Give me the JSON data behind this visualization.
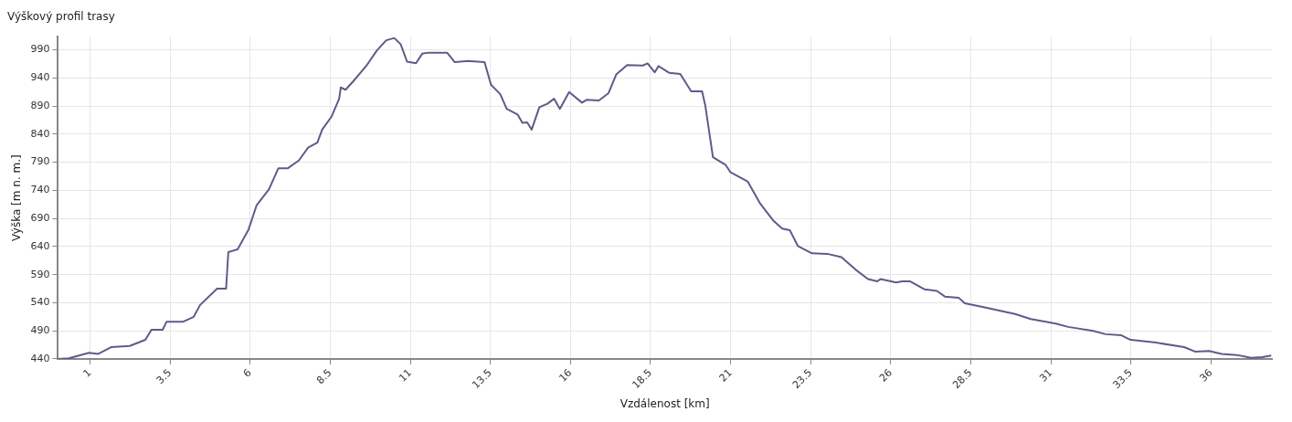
{
  "chart_data": {
    "type": "line",
    "title": "Výškový profil trasy",
    "xlabel": "Vzdálenost [km]",
    "ylabel": "Výška [m n. m.]",
    "xlim": [
      0,
      37.9
    ],
    "xticks": [
      1,
      3.5,
      6,
      8.5,
      11,
      13.5,
      16,
      18.5,
      21,
      23.5,
      26,
      28.5,
      31,
      33.5,
      36
    ],
    "ylim": [
      440,
      1013
    ],
    "yticks": [
      440,
      490,
      540,
      590,
      640,
      690,
      740,
      790,
      840,
      890,
      940,
      990
    ],
    "grid": true,
    "legend": false,
    "marker": "none",
    "line_style": "solid",
    "series": [
      {
        "color": "#5c5c8a",
        "x": [
          0,
          0.34,
          0.97,
          1.26,
          1.66,
          2.24,
          2.73,
          2.92,
          3.27,
          3.39,
          3.9,
          4.24,
          4.44,
          4.97,
          5.25,
          5.32,
          5.61,
          5.95,
          6.2,
          6.59,
          6.88,
          7.17,
          7.52,
          7.81,
          8.1,
          8.25,
          8.54,
          8.78,
          8.83,
          8.98,
          9.22,
          9.47,
          9.66,
          9.96,
          10.25,
          10.5,
          10.7,
          10.9,
          11.18,
          11.37,
          11.57,
          12.15,
          12.39,
          12.79,
          13.32,
          13.52,
          13.81,
          14.01,
          14.35,
          14.5,
          14.65,
          14.79,
          15.03,
          15.28,
          15.49,
          15.67,
          15.96,
          16.36,
          16.5,
          16.89,
          17.19,
          17.43,
          17.77,
          18.26,
          18.41,
          18.63,
          18.75,
          19.09,
          19.43,
          19.77,
          20.11,
          20.21,
          20.45,
          20.85,
          21.0,
          21.53,
          21.93,
          22.32,
          22.61,
          22.85,
          23.1,
          23.54,
          24.02,
          24.46,
          24.9,
          25.29,
          25.58,
          25.68,
          26.17,
          26.36,
          26.61,
          27.05,
          27.44,
          27.69,
          28.12,
          28.31,
          28.9,
          29.88,
          30.37,
          31.15,
          31.54,
          32.32,
          32.71,
          33.2,
          33.49,
          34.28,
          35.16,
          35.5,
          35.94,
          36.33,
          36.81,
          37.25,
          37.59,
          37.88
        ],
        "values": [
          440,
          441,
          451,
          449,
          461,
          463,
          474,
          492,
          492,
          506,
          506,
          515,
          536,
          565,
          565,
          630,
          635,
          670,
          713,
          742,
          779,
          779,
          793,
          816,
          825,
          848,
          871,
          903,
          923,
          919,
          934,
          951,
          964,
          989,
          1007,
          1011,
          1000,
          969,
          966,
          983,
          985,
          985,
          968,
          970,
          968,
          928,
          911,
          885,
          875,
          860,
          861,
          848,
          888,
          894,
          903,
          885,
          915,
          896,
          901,
          900,
          913,
          946,
          963,
          962,
          966,
          950,
          961,
          949,
          947,
          916,
          916,
          891,
          799,
          785,
          772,
          756,
          716,
          687,
          672,
          669,
          641,
          628,
          627,
          621,
          599,
          582,
          578,
          582,
          576,
          578,
          578,
          564,
          561,
          551,
          549,
          539,
          532,
          520,
          511,
          503,
          497,
          490,
          484,
          482,
          474,
          469,
          461,
          453,
          454,
          449,
          447,
          442,
          443,
          446
        ]
      }
    ]
  }
}
